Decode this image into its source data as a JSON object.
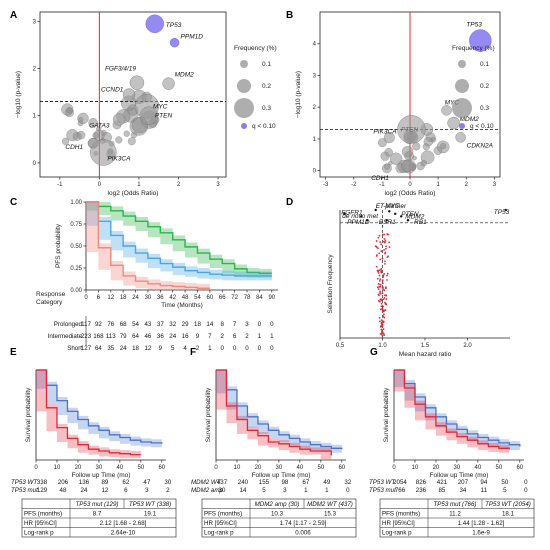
{
  "panels": [
    {
      "label": "A"
    },
    {
      "label": "B"
    },
    {
      "label": "C"
    },
    {
      "label": "D"
    },
    {
      "label": "E"
    },
    {
      "label": "F"
    },
    {
      "label": "G"
    }
  ],
  "colors": {
    "blue": "#4a74c9",
    "red": "#e02a3a",
    "green": "#2db44a",
    "lightblue": "#4aa6e6",
    "salmon": "#f08a80",
    "purple": "#8a7df2",
    "grey": "#9a9a9a"
  },
  "chart_data": [
    {
      "id": "A",
      "type": "scatter",
      "xlabel": "log2 (Odds Ratio)",
      "ylabel": "−log10 (p-value)",
      "xlim": [
        -1.5,
        3.2
      ],
      "ylim": [
        -0.3,
        3.2
      ],
      "xticks": [
        "-1",
        "0",
        "1",
        "2",
        "3"
      ],
      "yticks": [
        "0",
        "1",
        "2",
        "3"
      ],
      "threshold_y": 1.3,
      "legend": {
        "title": "Frequency (%)",
        "sizes": [
          "0.1",
          "0.2",
          "0.3"
        ],
        "q_label": "q < 0.10"
      },
      "labeled_points": [
        {
          "gene": "TP53",
          "x": 1.4,
          "y": 2.95,
          "q_sig": true
        },
        {
          "gene": "PPM1D",
          "x": 1.9,
          "y": 2.55,
          "q_sig": true
        },
        {
          "gene": "FGF3/4/19",
          "x": 0.95,
          "y": 1.7,
          "q_sig": false
        },
        {
          "gene": "MDM2",
          "x": 1.75,
          "y": 1.68,
          "q_sig": false
        },
        {
          "gene": "CCND1",
          "x": 0.75,
          "y": 1.45,
          "q_sig": false
        },
        {
          "gene": "MYC",
          "x": 1.2,
          "y": 1.2,
          "q_sig": false
        },
        {
          "gene": "PTEN",
          "x": 1.25,
          "y": 1.0,
          "q_sig": false
        },
        {
          "gene": "GATA3",
          "x": 0.5,
          "y": 0.92,
          "q_sig": false
        },
        {
          "gene": "CDH1",
          "x": -0.15,
          "y": 0.42,
          "q_sig": false
        },
        {
          "gene": "PIK3CA",
          "x": 0.1,
          "y": 0.22,
          "q_sig": false
        }
      ]
    },
    {
      "id": "B",
      "type": "scatter",
      "xlabel": "log2 (Odds Ratio)",
      "ylabel": "−log10 (p-value)",
      "xlim": [
        -3.2,
        3.2
      ],
      "ylim": [
        -0.2,
        5.0
      ],
      "xticks": [
        "-3",
        "-2",
        "-1",
        "0",
        "1",
        "2",
        "3"
      ],
      "yticks": [
        "0",
        "1",
        "2",
        "3",
        "4"
      ],
      "threshold_y": 1.3,
      "legend": {
        "title": "Frequency (%)",
        "sizes": [
          "0.1",
          "0.2",
          "0.3"
        ],
        "q_label": "q < 0.10"
      },
      "labeled_points": [
        {
          "gene": "TP53",
          "x": 2.5,
          "y": 4.1,
          "q_sig": true
        },
        {
          "gene": "MYC",
          "x": 1.3,
          "y": 1.9,
          "q_sig": false
        },
        {
          "gene": "MDM2",
          "x": 1.55,
          "y": 1.5,
          "q_sig": false
        },
        {
          "gene": "PTEN",
          "x": 0.6,
          "y": 1.3,
          "q_sig": false
        },
        {
          "gene": "CDKN2A",
          "x": 1.8,
          "y": 1.05,
          "q_sig": false
        },
        {
          "gene": "PIK3CA",
          "x": 0.05,
          "y": 1.3,
          "q_sig": false
        },
        {
          "gene": "CDH1",
          "x": -0.1,
          "y": 0.15,
          "q_sig": false
        }
      ]
    },
    {
      "id": "C",
      "type": "line",
      "ylabel": "PFS probability",
      "xlabel": "Time (Months)",
      "xlim": [
        0,
        93
      ],
      "ylim": [
        0,
        1.0
      ],
      "yticks": [
        "0.00",
        "0.25",
        "0.50",
        "0.75",
        "1.00"
      ],
      "x": [
        0,
        6,
        12,
        18,
        24,
        30,
        36,
        42,
        48,
        54,
        60,
        66,
        72,
        78,
        84,
        90
      ],
      "risk_header": "Response Category",
      "series": [
        {
          "name": "Prolonged",
          "color": "#2db44a",
          "surv": [
            [
              0,
              1
            ],
            [
              6,
              0.95
            ],
            [
              12,
              0.9
            ],
            [
              18,
              0.84
            ],
            [
              24,
              0.78
            ],
            [
              30,
              0.72
            ],
            [
              36,
              0.65
            ],
            [
              42,
              0.57
            ],
            [
              48,
              0.49
            ],
            [
              54,
              0.42
            ],
            [
              60,
              0.35
            ],
            [
              66,
              0.3
            ],
            [
              72,
              0.24
            ],
            [
              78,
              0.2
            ],
            [
              84,
              0.19
            ],
            [
              90,
              0.19
            ]
          ],
          "risk": [
            "117",
            "92",
            "76",
            "68",
            "54",
            "43",
            "37",
            "32",
            "29",
            "18",
            "14",
            "8",
            "7",
            "3",
            "0",
            "0"
          ]
        },
        {
          "name": "Intermediate",
          "color": "#4aa6e6",
          "surv": [
            [
              0,
              1
            ],
            [
              6,
              0.78
            ],
            [
              12,
              0.62
            ],
            [
              18,
              0.5
            ],
            [
              24,
              0.42
            ],
            [
              30,
              0.36
            ],
            [
              36,
              0.3
            ],
            [
              42,
              0.26
            ],
            [
              48,
              0.22
            ],
            [
              54,
              0.2
            ],
            [
              60,
              0.18
            ],
            [
              66,
              0.17
            ],
            [
              72,
              0.16
            ],
            [
              78,
              0.16
            ],
            [
              84,
              0.16
            ],
            [
              90,
              0.16
            ]
          ],
          "risk": [
            "223",
            "168",
            "113",
            "79",
            "64",
            "46",
            "36",
            "24",
            "16",
            "9",
            "7",
            "2",
            "6",
            "2",
            "1",
            "1"
          ]
        },
        {
          "name": "Short",
          "color": "#f08a80",
          "surv": [
            [
              0,
              1
            ],
            [
              6,
              0.48
            ],
            [
              12,
              0.28
            ],
            [
              18,
              0.16
            ],
            [
              24,
              0.1
            ],
            [
              30,
              0.07
            ],
            [
              36,
              0.05
            ],
            [
              42,
              0.04
            ],
            [
              48,
              0.03
            ],
            [
              54,
              0.02
            ],
            [
              60,
              0.02
            ]
          ],
          "risk": [
            "127",
            "64",
            "35",
            "24",
            "18",
            "12",
            "9",
            "5",
            "4",
            "2",
            "1",
            "0",
            "0",
            "0",
            "0",
            "0"
          ]
        }
      ]
    },
    {
      "id": "D",
      "type": "scatter",
      "xlabel": "Mean hazard ratio",
      "ylabel": "Selection Frequency",
      "xlim": [
        0.5,
        2.5
      ],
      "ylim": [
        0,
        1.0
      ],
      "xticks": [
        "0.5",
        "1.0",
        "1.5",
        "2.0"
      ],
      "threshold_y": 0.9,
      "labeled_points": [
        {
          "gene": "de novo met",
          "x": 0.55,
          "y": 0.97
        },
        {
          "gene": "ET-partner",
          "x": 0.92,
          "y": 1.0
        },
        {
          "gene": "MYC",
          "x": 1.08,
          "y": 0.99
        },
        {
          "gene": "FGFR1",
          "x": 0.75,
          "y": 0.95
        },
        {
          "gene": "PTEN",
          "x": 1.15,
          "y": 0.97
        },
        {
          "gene": "MDM2",
          "x": 1.22,
          "y": 0.95
        },
        {
          "gene": "PPM1D",
          "x": 0.82,
          "y": 0.92
        },
        {
          "gene": "ESR1",
          "x": 1.05,
          "y": 0.92
        },
        {
          "gene": "RB1",
          "x": 1.3,
          "y": 0.92
        },
        {
          "gene": "TP53",
          "x": 2.45,
          "y": 1.0
        }
      ]
    },
    {
      "id": "E",
      "type": "line",
      "ylabel": "Survival probability",
      "xlabel": "Follow up Time (mo)",
      "xlim": [
        0,
        62
      ],
      "ylim": [
        0,
        1.0
      ],
      "xticks": [
        "0",
        "10",
        "20",
        "30",
        "40",
        "50",
        "60"
      ],
      "series": [
        {
          "name": "TP53 WT",
          "color": "#4a74c9",
          "surv": [
            [
              0,
              1
            ],
            [
              5,
              0.83
            ],
            [
              10,
              0.66
            ],
            [
              15,
              0.54
            ],
            [
              20,
              0.45
            ],
            [
              25,
              0.38
            ],
            [
              30,
              0.33
            ],
            [
              35,
              0.28
            ],
            [
              40,
              0.25
            ],
            [
              45,
              0.22
            ],
            [
              50,
              0.2
            ],
            [
              55,
              0.19
            ],
            [
              60,
              0.18
            ]
          ],
          "risk": [
            "338",
            "206",
            "136",
            "89",
            "62",
            "47",
            "30"
          ]
        },
        {
          "name": "TP53 mut",
          "color": "#e02a3a",
          "surv": [
            [
              0,
              1
            ],
            [
              5,
              0.58
            ],
            [
              10,
              0.36
            ],
            [
              15,
              0.24
            ],
            [
              20,
              0.17
            ],
            [
              25,
              0.12
            ],
            [
              30,
              0.1
            ],
            [
              35,
              0.08
            ],
            [
              40,
              0.07
            ],
            [
              45,
              0.06
            ],
            [
              50,
              0.06
            ]
          ],
          "risk": [
            "129",
            "48",
            "24",
            "12",
            "6",
            "3",
            "2"
          ]
        }
      ],
      "table": {
        "header": [
          "",
          "TP53 mut (129)",
          "TP53 WT (338)"
        ],
        "rows": [
          [
            "PFS (months)",
            "8.7",
            "19.1"
          ],
          [
            "HR [95%CI]",
            "2.12 [1.68 - 2.68]",
            ""
          ],
          [
            "Log-rank p",
            "2.64e-10",
            ""
          ]
        ]
      }
    },
    {
      "id": "F",
      "type": "line",
      "ylabel": "Survival probability",
      "xlabel": "Follow up Time (mo)",
      "xlim": [
        0,
        62
      ],
      "ylim": [
        0,
        1.0
      ],
      "xticks": [
        "0",
        "10",
        "20",
        "30",
        "40",
        "50",
        "60"
      ],
      "series": [
        {
          "name": "MDM2 WT",
          "color": "#4a74c9",
          "surv": [
            [
              0,
              1
            ],
            [
              5,
              0.78
            ],
            [
              10,
              0.6
            ],
            [
              15,
              0.48
            ],
            [
              20,
              0.4
            ],
            [
              25,
              0.33
            ],
            [
              30,
              0.28
            ],
            [
              35,
              0.24
            ],
            [
              40,
              0.2
            ],
            [
              45,
              0.17
            ],
            [
              50,
              0.15
            ],
            [
              55,
              0.13
            ],
            [
              60,
              0.12
            ]
          ],
          "risk": [
            "437",
            "240",
            "155",
            "98",
            "67",
            "49",
            "32"
          ]
        },
        {
          "name": "MDM2 amp",
          "color": "#e02a3a",
          "surv": [
            [
              0,
              1
            ],
            [
              5,
              0.6
            ],
            [
              10,
              0.45
            ],
            [
              15,
              0.33
            ],
            [
              20,
              0.27
            ],
            [
              25,
              0.2
            ],
            [
              30,
              0.18
            ],
            [
              35,
              0.15
            ],
            [
              40,
              0.12
            ],
            [
              45,
              0.1
            ],
            [
              50,
              0.1
            ],
            [
              55,
              0.05
            ]
          ],
          "risk": [
            "30",
            "14",
            "5",
            "3",
            "1",
            "1",
            "0"
          ]
        }
      ],
      "table": {
        "header": [
          "",
          "MDM2 amp (30)",
          "MDM2 WT (437)"
        ],
        "rows": [
          [
            "PFS (months)",
            "10.3",
            "15.3"
          ],
          [
            "HR [95%CI]",
            "1.74 [1.17 - 2.59]",
            ""
          ],
          [
            "Log-rank p",
            "0.006",
            ""
          ]
        ]
      }
    },
    {
      "id": "G",
      "type": "line",
      "ylabel": "Survival probability",
      "xlabel": "Follow up Time (mo)",
      "xlim": [
        0,
        62
      ],
      "ylim": [
        0,
        1.0
      ],
      "xticks": [
        "0",
        "10",
        "20",
        "30",
        "40",
        "50",
        "60"
      ],
      "series": [
        {
          "name": "TP53 WT",
          "color": "#4a74c9",
          "surv": [
            [
              0,
              1
            ],
            [
              5,
              0.85
            ],
            [
              10,
              0.7
            ],
            [
              15,
              0.58
            ],
            [
              20,
              0.48
            ],
            [
              25,
              0.4
            ],
            [
              30,
              0.34
            ],
            [
              35,
              0.29
            ],
            [
              40,
              0.25
            ],
            [
              45,
              0.22
            ],
            [
              50,
              0.19
            ],
            [
              55,
              0.17
            ],
            [
              60,
              0.15
            ]
          ],
          "risk": [
            "2054",
            "826",
            "421",
            "207",
            "94",
            "50",
            "0"
          ]
        },
        {
          "name": "TP53 mut",
          "color": "#e02a3a",
          "surv": [
            [
              0,
              1
            ],
            [
              5,
              0.8
            ],
            [
              10,
              0.62
            ],
            [
              15,
              0.48
            ],
            [
              20,
              0.38
            ],
            [
              25,
              0.31
            ],
            [
              30,
              0.26
            ],
            [
              35,
              0.22
            ],
            [
              40,
              0.18
            ],
            [
              45,
              0.15
            ],
            [
              50,
              0.13
            ],
            [
              55,
              0.12
            ]
          ],
          "risk": [
            "766",
            "236",
            "85",
            "34",
            "11",
            "5",
            "0"
          ]
        }
      ],
      "table": {
        "header": [
          "",
          "TP53 mut (766)",
          "TP53 WT (2054)"
        ],
        "rows": [
          [
            "PFS (months)",
            "11.2",
            "18.1"
          ],
          [
            "HR [95%CI]",
            "1.44 [1.28 - 1.62]",
            ""
          ],
          [
            "Log-rank p",
            "1.6e-9",
            ""
          ]
        ]
      }
    }
  ]
}
